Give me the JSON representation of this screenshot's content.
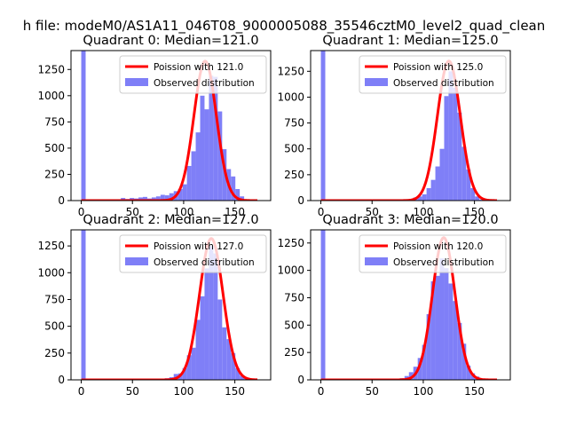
{
  "figure": {
    "suptitle": "h file: modeM0/AS1A11_046T08_9000005088_35546cztM0_level2_quad_clean"
  },
  "colors": {
    "hist": "#7f7ff7",
    "fit": "#ff0000",
    "axis": "#000000"
  },
  "chart_data": [
    {
      "type": "bar",
      "title": "Quadrant 0: Median=121.0",
      "xlim": [
        -10,
        185
      ],
      "ylim": [
        0,
        1430
      ],
      "xticks": [
        0,
        50,
        100,
        150
      ],
      "yticks": [
        0,
        250,
        500,
        750,
        1000,
        1250
      ],
      "legend": [
        "Poission with 121.0",
        "Observed distribution"
      ],
      "legend_position": "upper right",
      "poisson_mean": 121.0,
      "poisson_peak": 1330,
      "poisson_sigma": 11.0,
      "histogram": {
        "name": "Observed distribution",
        "bin_width": 4.3,
        "bins": [
          [
            0,
            1430
          ],
          [
            4.3,
            0
          ],
          [
            8.6,
            0
          ],
          [
            12.9,
            0
          ],
          [
            17.2,
            0
          ],
          [
            21.5,
            0
          ],
          [
            25.8,
            0
          ],
          [
            30.1,
            0
          ],
          [
            34.4,
            0
          ],
          [
            38.7,
            25
          ],
          [
            43,
            15
          ],
          [
            47.3,
            25
          ],
          [
            51.6,
            20
          ],
          [
            55.9,
            30
          ],
          [
            60.2,
            35
          ],
          [
            64.5,
            20
          ],
          [
            68.8,
            30
          ],
          [
            73.1,
            40
          ],
          [
            77.4,
            55
          ],
          [
            81.7,
            50
          ],
          [
            86,
            70
          ],
          [
            90.3,
            90
          ],
          [
            94.6,
            110
          ],
          [
            98.9,
            155
          ],
          [
            103.2,
            330
          ],
          [
            107.5,
            470
          ],
          [
            111.8,
            650
          ],
          [
            116.1,
            1000
          ],
          [
            120.4,
            870
          ],
          [
            124.7,
            1190
          ],
          [
            129,
            1180
          ],
          [
            133.3,
            850
          ],
          [
            137.6,
            490
          ],
          [
            141.9,
            300
          ],
          [
            146.2,
            230
          ],
          [
            150.5,
            110
          ],
          [
            154.8,
            40
          ],
          [
            159.1,
            10
          ]
        ]
      }
    },
    {
      "type": "bar",
      "title": "Quadrant 1: Median=125.0",
      "xlim": [
        -10,
        185
      ],
      "ylim": [
        0,
        1450
      ],
      "xticks": [
        0,
        50,
        100,
        150
      ],
      "yticks": [
        0,
        250,
        500,
        750,
        1000,
        1250
      ],
      "legend": [
        "Poission with 125.0",
        "Observed distribution"
      ],
      "legend_position": "upper right",
      "poisson_mean": 125.0,
      "poisson_peak": 1350,
      "poisson_sigma": 11.2,
      "histogram": {
        "name": "Observed distribution",
        "bin_width": 4.3,
        "bins": [
          [
            0,
            1450
          ],
          [
            4.3,
            0
          ],
          [
            8.6,
            0
          ],
          [
            12.9,
            0
          ],
          [
            17.2,
            0
          ],
          [
            21.5,
            0
          ],
          [
            25.8,
            0
          ],
          [
            30.1,
            0
          ],
          [
            34.4,
            0
          ],
          [
            38.7,
            0
          ],
          [
            43,
            0
          ],
          [
            47.3,
            0
          ],
          [
            51.6,
            0
          ],
          [
            55.9,
            0
          ],
          [
            60.2,
            0
          ],
          [
            64.5,
            0
          ],
          [
            68.8,
            0
          ],
          [
            73.1,
            0
          ],
          [
            77.4,
            5
          ],
          [
            81.7,
            10
          ],
          [
            86,
            15
          ],
          [
            90.3,
            30
          ],
          [
            94.6,
            40
          ],
          [
            98.9,
            60
          ],
          [
            103.2,
            120
          ],
          [
            107.5,
            200
          ],
          [
            111.8,
            330
          ],
          [
            116.1,
            500
          ],
          [
            120.4,
            1010
          ],
          [
            124.7,
            1250
          ],
          [
            129,
            1090
          ],
          [
            133.3,
            850
          ],
          [
            137.6,
            520
          ],
          [
            141.9,
            300
          ],
          [
            146.2,
            120
          ],
          [
            150.5,
            40
          ],
          [
            154.8,
            10
          ]
        ]
      }
    },
    {
      "type": "bar",
      "title": "Quadrant 2: Median=127.0",
      "xlim": [
        -10,
        185
      ],
      "ylim": [
        0,
        1400
      ],
      "xticks": [
        0,
        50,
        100,
        150
      ],
      "yticks": [
        0,
        250,
        500,
        750,
        1000,
        1250
      ],
      "legend": [
        "Poission with 127.0",
        "Observed distribution"
      ],
      "legend_position": "upper right",
      "poisson_mean": 127.0,
      "poisson_peak": 1320,
      "poisson_sigma": 11.5,
      "histogram": {
        "name": "Observed distribution",
        "bin_width": 4.3,
        "bins": [
          [
            0,
            1400
          ],
          [
            4.3,
            0
          ],
          [
            8.6,
            0
          ],
          [
            12.9,
            0
          ],
          [
            17.2,
            0
          ],
          [
            21.5,
            0
          ],
          [
            25.8,
            0
          ],
          [
            30.1,
            0
          ],
          [
            34.4,
            0
          ],
          [
            38.7,
            0
          ],
          [
            43,
            0
          ],
          [
            47.3,
            0
          ],
          [
            51.6,
            0
          ],
          [
            55.9,
            0
          ],
          [
            60.2,
            0
          ],
          [
            64.5,
            0
          ],
          [
            68.8,
            0
          ],
          [
            73.1,
            0
          ],
          [
            77.4,
            10
          ],
          [
            81.7,
            15
          ],
          [
            86,
            25
          ],
          [
            90.3,
            55
          ],
          [
            94.6,
            60
          ],
          [
            98.9,
            110
          ],
          [
            103.2,
            230
          ],
          [
            107.5,
            300
          ],
          [
            111.8,
            560
          ],
          [
            116.1,
            780
          ],
          [
            120.4,
            1040
          ],
          [
            124.7,
            1250
          ],
          [
            129,
            1180
          ],
          [
            133.3,
            750
          ],
          [
            137.6,
            490
          ],
          [
            141.9,
            380
          ],
          [
            146.2,
            250
          ],
          [
            150.5,
            110
          ],
          [
            154.8,
            40
          ],
          [
            159.1,
            15
          ]
        ]
      }
    },
    {
      "type": "bar",
      "title": "Quadrant 3: Median=120.0",
      "xlim": [
        -10,
        185
      ],
      "ylim": [
        0,
        1370
      ],
      "xticks": [
        0,
        50,
        100,
        150
      ],
      "yticks": [
        0,
        250,
        500,
        750,
        1000,
        1250
      ],
      "legend": [
        "Poission with 120.0",
        "Observed distribution"
      ],
      "legend_position": "upper right",
      "poisson_mean": 120.0,
      "poisson_peak": 1300,
      "poisson_sigma": 11.0,
      "histogram": {
        "name": "Observed distribution",
        "bin_width": 4.3,
        "bins": [
          [
            0,
            1370
          ],
          [
            4.3,
            0
          ],
          [
            8.6,
            0
          ],
          [
            12.9,
            0
          ],
          [
            17.2,
            0
          ],
          [
            21.5,
            0
          ],
          [
            25.8,
            0
          ],
          [
            30.1,
            0
          ],
          [
            34.4,
            0
          ],
          [
            38.7,
            0
          ],
          [
            43,
            0
          ],
          [
            47.3,
            0
          ],
          [
            51.6,
            0
          ],
          [
            55.9,
            0
          ],
          [
            60.2,
            0
          ],
          [
            64.5,
            0
          ],
          [
            68.8,
            5
          ],
          [
            73.1,
            10
          ],
          [
            77.4,
            15
          ],
          [
            81.7,
            35
          ],
          [
            86,
            70
          ],
          [
            90.3,
            120
          ],
          [
            94.6,
            200
          ],
          [
            98.9,
            320
          ],
          [
            103.2,
            600
          ],
          [
            107.5,
            900
          ],
          [
            111.8,
            950
          ],
          [
            116.1,
            1110
          ],
          [
            120.4,
            1020
          ],
          [
            124.7,
            880
          ],
          [
            129,
            720
          ],
          [
            133.3,
            520
          ],
          [
            137.6,
            330
          ],
          [
            141.9,
            130
          ],
          [
            146.2,
            60
          ],
          [
            150.5,
            30
          ],
          [
            154.8,
            10
          ]
        ]
      }
    }
  ]
}
